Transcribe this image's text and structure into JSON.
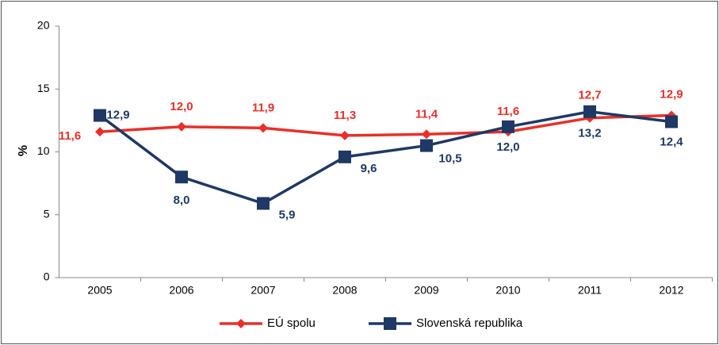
{
  "chart_data": {
    "type": "line",
    "y_label": "%",
    "categories": [
      "2005",
      "2006",
      "2007",
      "2008",
      "2009",
      "2010",
      "2011",
      "2012"
    ],
    "series": [
      {
        "name": "EÚ spolu",
        "color": "#e8302a",
        "marker": "diamond",
        "values": [
          11.6,
          12.0,
          11.9,
          11.3,
          11.4,
          11.6,
          12.7,
          12.9
        ],
        "value_labels": [
          "11,6",
          "12,0",
          "11,9",
          "11,3",
          "11,4",
          "11,6",
          "12,7",
          "12,9"
        ]
      },
      {
        "name": "Slovenská republika",
        "color": "#1f3864",
        "marker": "square",
        "values": [
          12.9,
          8.0,
          5.9,
          9.6,
          10.5,
          12.0,
          13.2,
          12.4
        ],
        "value_labels": [
          "12,9",
          "8,0",
          "5,9",
          "9,6",
          "10,5",
          "12,0",
          "13,2",
          "12,4"
        ]
      }
    ],
    "ylim": [
      0,
      20
    ],
    "yticks": [
      0,
      5,
      10,
      15,
      20
    ],
    "grid": false,
    "legend": "bottom"
  }
}
